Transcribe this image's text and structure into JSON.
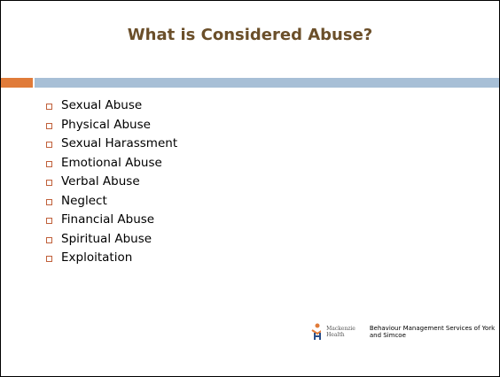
{
  "title": "What is Considered Abuse?",
  "items": [
    "Sexual Abuse",
    "Physical Abuse",
    "Sexual Harassment",
    "Emotional Abuse",
    "Verbal Abuse",
    "Neglect",
    "Financial Abuse",
    "Spiritual Abuse",
    "Exploitation"
  ],
  "logo": {
    "line1": "Mackenzie",
    "line2": "Health"
  },
  "footer": "Behaviour Management Services of York and Simcoe"
}
